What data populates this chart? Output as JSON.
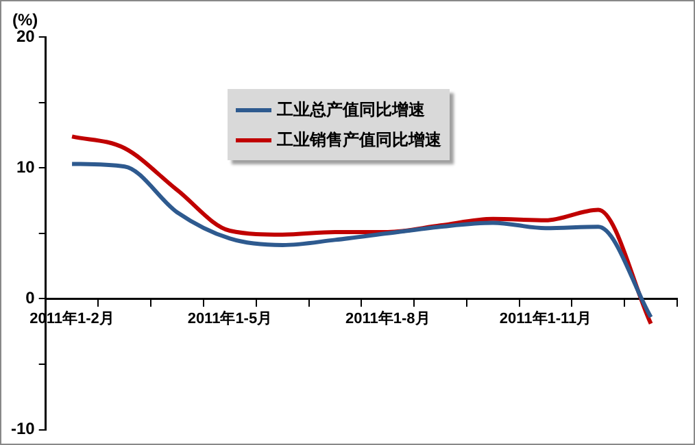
{
  "chart_data": {
    "type": "line",
    "ylabel": "(%)",
    "categories": [
      "2011年1-2月",
      null,
      null,
      "2011年1-5月",
      null,
      null,
      "2011年1-8月",
      null,
      null,
      "2011年1-11月",
      null,
      null
    ],
    "series": [
      {
        "name": "工业总产值同比增速",
        "color": "#2e5a8f",
        "values": [
          10.3,
          10.1,
          6.6,
          4.6,
          4.1,
          4.5,
          5.0,
          5.5,
          5.8,
          5.4,
          5.5,
          -1.4
        ]
      },
      {
        "name": "工业销售产值同比增速",
        "color": "#c00000",
        "values": [
          12.4,
          11.5,
          8.3,
          5.2,
          4.9,
          5.1,
          5.1,
          5.6,
          6.1,
          6.0,
          6.8,
          -1.9
        ]
      }
    ],
    "ylim": [
      -10,
      20
    ],
    "yticks": [
      -10,
      {
        "value": -5,
        "label": null
      },
      0,
      {
        "value": 5,
        "label": null
      },
      10,
      {
        "value": 15,
        "label": null
      },
      20
    ],
    "grid": false,
    "legend": "top",
    "marker": "none",
    "line_style": "solid"
  }
}
